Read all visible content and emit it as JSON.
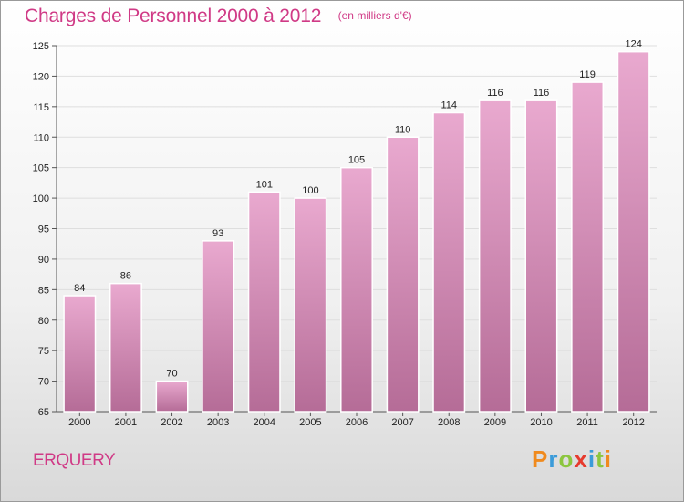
{
  "header": {
    "title": "Charges de Personnel 2000 à 2012",
    "subtitle": "(en milliers d'€)"
  },
  "footer": {
    "place": "ERQUERY",
    "logo": "Proxiti"
  },
  "colors": {
    "title": "#d03a86",
    "bar_light": "#e9a9cf",
    "bar_dark": "#b56c97",
    "logo_letters": [
      "#f08a1d",
      "#3b9bd9",
      "#8cc63f",
      "#e63b2e",
      "#3b9bd9",
      "#8cc63f",
      "#f08a1d"
    ]
  },
  "chart_data": {
    "type": "bar",
    "title": "Charges de Personnel 2000 à 2012",
    "subtitle": "(en milliers d'€)",
    "categories": [
      "2000",
      "2001",
      "2002",
      "2003",
      "2004",
      "2005",
      "2006",
      "2007",
      "2008",
      "2009",
      "2010",
      "2011",
      "2012"
    ],
    "values": [
      84,
      86,
      70,
      93,
      101,
      100,
      105,
      110,
      114,
      116,
      116,
      119,
      124
    ],
    "ylim": [
      65,
      125
    ],
    "yticks": [
      65,
      70,
      75,
      80,
      85,
      90,
      95,
      100,
      105,
      110,
      115,
      120,
      125
    ],
    "grid": true,
    "data_labels": true
  }
}
